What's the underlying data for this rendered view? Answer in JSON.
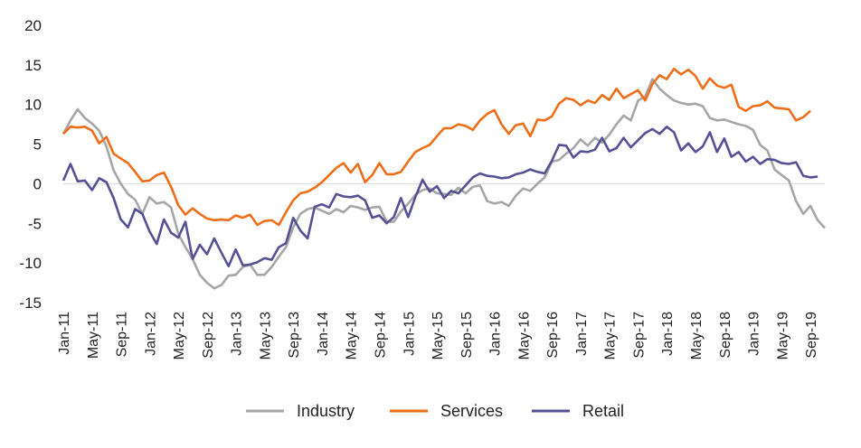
{
  "chart_data": {
    "type": "line",
    "title": "",
    "xlabel": "",
    "ylabel": "",
    "ylim": [
      -15,
      20
    ],
    "yticks": [
      -15,
      -10,
      -5,
      0,
      5,
      10,
      15,
      20
    ],
    "grid": false,
    "legend_position": "bottom",
    "x_tick_labels": [
      "Jan-11",
      "May-11",
      "Sep-11",
      "Jan-12",
      "May-12",
      "Sep-12",
      "Jan-13",
      "May-13",
      "Sep-13",
      "Jan-14",
      "May-14",
      "Sep-14",
      "Jan-15",
      "May-15",
      "Sep-15",
      "Jan-16",
      "May-16",
      "Sep-16",
      "Jan-17",
      "May-17",
      "Sep-17",
      "Jan-18",
      "May-18",
      "Sep-18",
      "Jan-19",
      "May-19",
      "Sep-19"
    ],
    "x_start": "Jan-11",
    "x_end": "Oct-19",
    "series": [
      {
        "name": "Industry",
        "color": "#a6a6a6",
        "values": [
          6.3,
          8.0,
          9.4,
          8.3,
          7.6,
          6.7,
          4.7,
          1.7,
          0.0,
          -1.3,
          -2.0,
          -3.8,
          -1.7,
          -2.5,
          -2.3,
          -3.0,
          -6.3,
          -8.0,
          -9.5,
          -11.5,
          -12.5,
          -13.2,
          -12.8,
          -11.6,
          -11.5,
          -10.5,
          -10.2,
          -11.5,
          -11.5,
          -10.5,
          -9.2,
          -8.0,
          -5.5,
          -3.8,
          -3.2,
          -3.0,
          -3.4,
          -3.8,
          -3.2,
          -3.6,
          -2.8,
          -3.0,
          -3.3,
          -3.0,
          -2.9,
          -4.8,
          -4.8,
          -3.5,
          -2.5,
          -1.4,
          -0.8,
          -0.6,
          -1.2,
          -1.3,
          -1.4,
          -0.5,
          -1.2,
          -0.4,
          -0.2,
          -2.2,
          -2.5,
          -2.3,
          -2.8,
          -1.5,
          -0.6,
          -0.9,
          0.0,
          0.8,
          2.8,
          3.0,
          3.8,
          4.5,
          5.6,
          4.8,
          5.8,
          5.2,
          6.2,
          7.5,
          8.6,
          8.0,
          10.5,
          11.0,
          13.2,
          12.0,
          11.2,
          10.5,
          10.2,
          10.0,
          10.1,
          9.8,
          8.3,
          8.0,
          8.1,
          7.8,
          7.5,
          7.3,
          6.8,
          4.9,
          4.2,
          1.8,
          1.1,
          0.4,
          -2.2,
          -3.8,
          -2.8,
          -4.6,
          -5.6
        ]
      },
      {
        "name": "Services",
        "color": "#ee6e1a",
        "values": [
          6.3,
          7.2,
          7.1,
          7.2,
          6.7,
          5.1,
          5.9,
          3.8,
          3.2,
          2.6,
          1.5,
          0.3,
          0.4,
          1.1,
          1.4,
          -0.4,
          -2.7,
          -3.9,
          -3.1,
          -3.8,
          -4.4,
          -4.6,
          -4.5,
          -4.6,
          -4.0,
          -4.3,
          -3.9,
          -5.2,
          -4.7,
          -4.6,
          -5.2,
          -3.6,
          -2.1,
          -1.2,
          -1.0,
          -0.5,
          0.2,
          1.1,
          2.0,
          2.6,
          1.4,
          2.5,
          0.2,
          1.1,
          2.6,
          1.2,
          1.2,
          1.5,
          2.8,
          4.0,
          4.5,
          4.9,
          6.0,
          7.0,
          7.0,
          7.5,
          7.3,
          6.8,
          8.0,
          8.8,
          9.3,
          7.5,
          6.3,
          7.4,
          7.6,
          6.0,
          8.1,
          8.0,
          8.5,
          10.1,
          10.8,
          10.6,
          9.9,
          10.5,
          10.2,
          11.2,
          10.6,
          12.0,
          10.8,
          11.3,
          11.8,
          10.5,
          12.6,
          13.7,
          13.2,
          14.5,
          13.8,
          14.4,
          13.6,
          12.0,
          13.3,
          12.4,
          12.1,
          12.5,
          9.7,
          9.2,
          9.8,
          9.9,
          10.4,
          9.6,
          9.5,
          9.4,
          8.0,
          8.4,
          9.2
        ]
      },
      {
        "name": "Retail",
        "color": "#565095",
        "values": [
          0.4,
          2.5,
          0.3,
          0.4,
          -0.8,
          0.7,
          0.2,
          -1.8,
          -4.5,
          -5.5,
          -3.2,
          -3.8,
          -6.0,
          -7.6,
          -4.5,
          -6.2,
          -6.8,
          -4.8,
          -9.5,
          -7.7,
          -8.9,
          -6.9,
          -8.7,
          -10.4,
          -8.3,
          -10.3,
          -10.2,
          -9.9,
          -9.4,
          -9.6,
          -8.0,
          -7.5,
          -4.3,
          -5.9,
          -6.9,
          -2.9,
          -2.6,
          -3.0,
          -1.3,
          -1.6,
          -1.7,
          -1.5,
          -2.1,
          -4.3,
          -4.0,
          -5.0,
          -4.2,
          -1.8,
          -4.2,
          -1.7,
          0.5,
          -1.0,
          -0.3,
          -1.8,
          -0.9,
          -1.2,
          -0.2,
          0.8,
          1.3,
          1.0,
          0.9,
          0.7,
          0.8,
          1.2,
          1.4,
          1.8,
          1.5,
          1.3,
          2.9,
          4.9,
          4.8,
          3.3,
          4.1,
          4.0,
          4.3,
          5.8,
          4.1,
          4.5,
          5.8,
          4.6,
          5.5,
          6.4,
          6.9,
          6.3,
          7.2,
          6.5,
          4.2,
          5.1,
          4.0,
          4.7,
          6.5,
          4.0,
          5.7,
          3.4,
          4.0,
          2.8,
          3.4,
          2.5,
          3.1,
          3.0,
          2.6,
          2.5,
          2.7,
          1.0,
          0.8,
          0.9
        ]
      }
    ]
  },
  "legend": {
    "items": [
      {
        "label": "Industry",
        "color": "#a6a6a6"
      },
      {
        "label": "Services",
        "color": "#ee6e1a"
      },
      {
        "label": "Retail",
        "color": "#565095"
      }
    ]
  }
}
